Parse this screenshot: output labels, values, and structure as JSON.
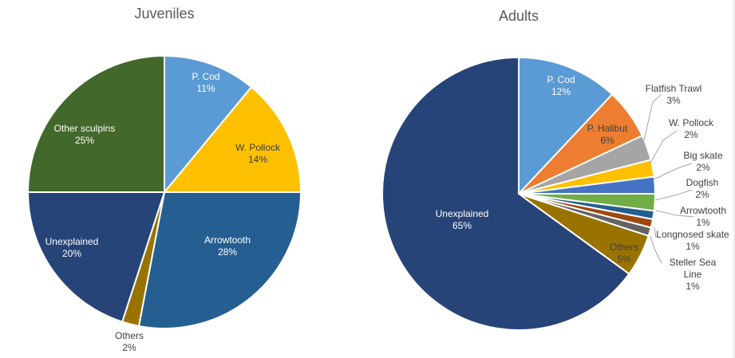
{
  "chart_data": [
    {
      "type": "pie",
      "title": "Juveniles",
      "slices": [
        {
          "label": "P. Cod",
          "value": 11,
          "pct_label": "11%",
          "color": "#5b9bd5"
        },
        {
          "label": "W. Pollock",
          "value": 14,
          "pct_label": "14%",
          "color": "#ffc000"
        },
        {
          "label": "Arrowtooth",
          "value": 28,
          "pct_label": "28%",
          "color": "#255e91"
        },
        {
          "label": "Others",
          "value": 2,
          "pct_label": "2%",
          "color": "#997300"
        },
        {
          "label": "Unexplained",
          "value": 20,
          "pct_label": "20%",
          "color": "#264478"
        },
        {
          "label": "Other sculpins",
          "value": 25,
          "pct_label": "25%",
          "color": "#43682b"
        }
      ]
    },
    {
      "type": "pie",
      "title": "Adults",
      "slices": [
        {
          "label": "P. Cod",
          "value": 12,
          "pct_label": "12%",
          "color": "#5b9bd5"
        },
        {
          "label": "P. Halibut",
          "value": 6,
          "pct_label": "6%",
          "color": "#ed7d31"
        },
        {
          "label": "Flatfish Trawl",
          "value": 3,
          "pct_label": "3%",
          "color": "#a5a5a5"
        },
        {
          "label": "W. Pollock",
          "value": 2,
          "pct_label": "2%",
          "color": "#ffc000"
        },
        {
          "label": "Big skate",
          "value": 2,
          "pct_label": "2%",
          "color": "#4472c4"
        },
        {
          "label": "Dogfish",
          "value": 2,
          "pct_label": "2%",
          "color": "#70ad47"
        },
        {
          "label": "Arrowtooth",
          "value": 1,
          "pct_label": "1%",
          "color": "#255e91"
        },
        {
          "label": "Longnosed skate",
          "value": 1,
          "pct_label": "1%",
          "color": "#9e480e"
        },
        {
          "label": "Steller Sea Line",
          "value": 1,
          "pct_label": "1%",
          "color": "#636363"
        },
        {
          "label": "Others",
          "value": 5,
          "pct_label": "5%",
          "color": "#997300"
        },
        {
          "label": "Unexplained",
          "value": 65,
          "pct_label": "65%",
          "color": "#264478"
        }
      ]
    }
  ]
}
